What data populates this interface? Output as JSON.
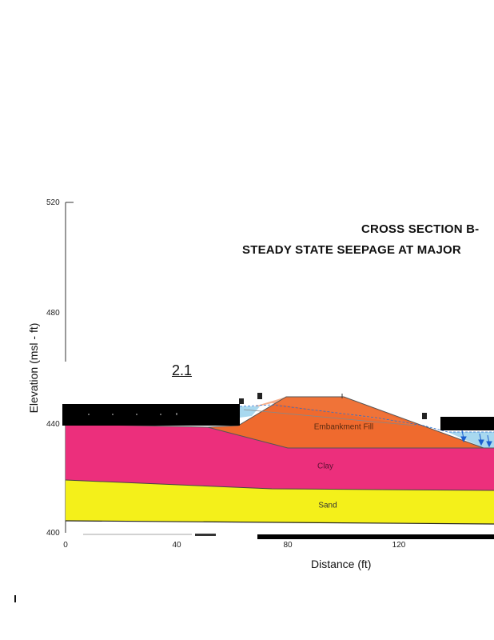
{
  "title": {
    "line1": "CROSS SECTION B-",
    "line2": "STEADY STATE SEEPAGE AT MAJOR"
  },
  "axes": {
    "ylabel": "Elevation (msl - ft)",
    "xlabel": "Distance (ft)",
    "yticks": [
      "520",
      "480",
      "440",
      "400"
    ],
    "xticks": [
      "0",
      "40",
      "80",
      "120"
    ]
  },
  "factor_of_safety": "2.1",
  "materials": {
    "embankment": "Embankment Fill",
    "clay": "Clay",
    "sand": "Sand"
  },
  "colors": {
    "embankment": "#ef6a2e",
    "clay": "#ec2f7c",
    "sand": "#f4f01a",
    "water": "#a8d8ef",
    "redaction": "#000000"
  }
}
